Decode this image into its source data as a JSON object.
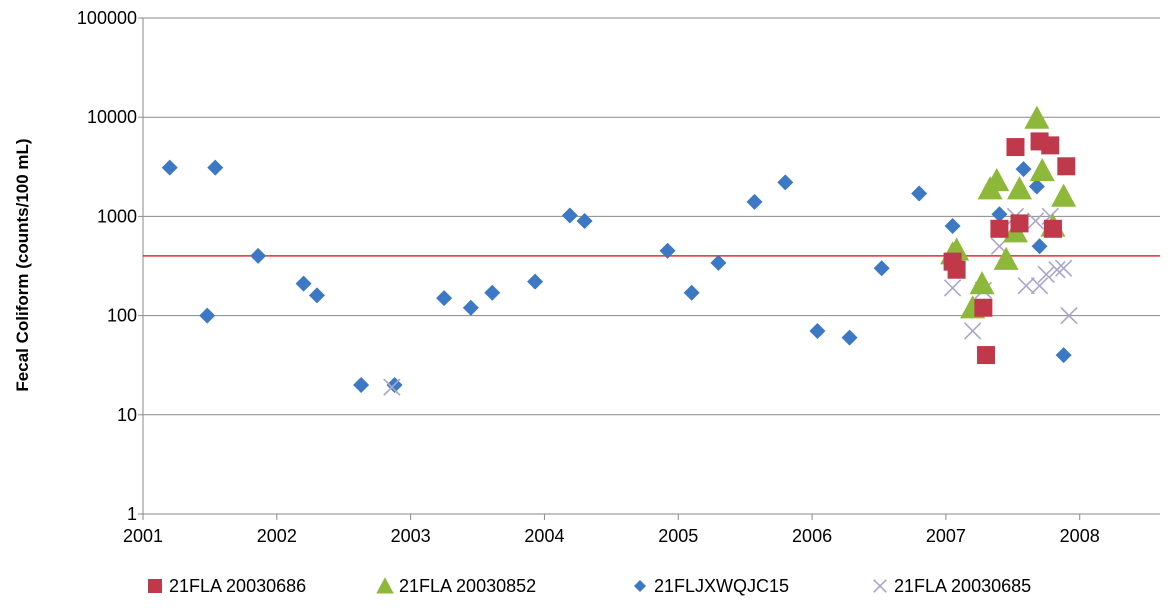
{
  "chart_data": {
    "type": "scatter",
    "title": "",
    "xlabel": "",
    "ylabel": "Fecal Coliform (counts/100 mL)",
    "yscale": "log",
    "ylim": [
      1,
      100000
    ],
    "xlim": [
      2001.0,
      2008.6
    ],
    "x_ticks": [
      2001,
      2002,
      2003,
      2004,
      2005,
      2006,
      2007,
      2008
    ],
    "y_ticks": [
      1,
      10,
      100,
      1000,
      10000,
      100000
    ],
    "y_tick_labels": [
      "1",
      "10",
      "100",
      "1000",
      "10000",
      "100000"
    ],
    "x_tick_labels": [
      "2001",
      "2002",
      "2003",
      "2004",
      "2005",
      "2006",
      "2007",
      "2008"
    ],
    "grid": "horizontal",
    "legend_position": "bottom",
    "reference_line": {
      "y": 400,
      "color": "#e03030"
    },
    "series": [
      {
        "name": "21FLA   20030686",
        "marker": "square",
        "color": "#c0394b",
        "points": [
          [
            2007.05,
            350
          ],
          [
            2007.08,
            290
          ],
          [
            2007.28,
            120
          ],
          [
            2007.3,
            40
          ],
          [
            2007.4,
            750
          ],
          [
            2007.52,
            5000
          ],
          [
            2007.55,
            850
          ],
          [
            2007.7,
            5700
          ],
          [
            2007.78,
            5200
          ],
          [
            2007.8,
            750
          ],
          [
            2007.9,
            3200
          ]
        ]
      },
      {
        "name": "21FLA   20030852",
        "marker": "triangle",
        "color": "#8db83a",
        "points": [
          [
            2007.05,
            420
          ],
          [
            2007.08,
            460
          ],
          [
            2007.2,
            120
          ],
          [
            2007.27,
            210
          ],
          [
            2007.33,
            1900
          ],
          [
            2007.38,
            2300
          ],
          [
            2007.45,
            370
          ],
          [
            2007.52,
            700
          ],
          [
            2007.55,
            1900
          ],
          [
            2007.68,
            9800
          ],
          [
            2007.72,
            2900
          ],
          [
            2007.8,
            800
          ],
          [
            2007.88,
            1600
          ]
        ]
      },
      {
        "name": "21FLJXWQJC15",
        "marker": "diamond",
        "color": "#3d78c5",
        "points": [
          [
            2001.2,
            3100
          ],
          [
            2001.48,
            100
          ],
          [
            2001.54,
            3100
          ],
          [
            2001.86,
            400
          ],
          [
            2002.2,
            210
          ],
          [
            2002.3,
            160
          ],
          [
            2002.63,
            20
          ],
          [
            2002.88,
            20
          ],
          [
            2003.25,
            150
          ],
          [
            2003.45,
            120
          ],
          [
            2003.61,
            170
          ],
          [
            2003.93,
            220
          ],
          [
            2004.19,
            1020
          ],
          [
            2004.3,
            900
          ],
          [
            2004.92,
            450
          ],
          [
            2005.1,
            170
          ],
          [
            2005.3,
            340
          ],
          [
            2005.57,
            1400
          ],
          [
            2005.8,
            2200
          ],
          [
            2006.04,
            70
          ],
          [
            2006.28,
            60
          ],
          [
            2006.52,
            300
          ],
          [
            2006.8,
            1700
          ],
          [
            2007.05,
            800
          ],
          [
            2007.4,
            1050
          ],
          [
            2007.58,
            3000
          ],
          [
            2007.68,
            2000
          ],
          [
            2007.7,
            500
          ],
          [
            2007.88,
            40
          ]
        ]
      },
      {
        "name": "21FLA   20030685",
        "marker": "x",
        "color": "#a9a6cc",
        "points": [
          [
            2002.86,
            19
          ],
          [
            2007.05,
            190
          ],
          [
            2007.2,
            70
          ],
          [
            2007.28,
            180
          ],
          [
            2007.4,
            500
          ],
          [
            2007.52,
            1000
          ],
          [
            2007.6,
            200
          ],
          [
            2007.67,
            900
          ],
          [
            2007.7,
            200
          ],
          [
            2007.75,
            260
          ],
          [
            2007.78,
            1000
          ],
          [
            2007.83,
            290
          ],
          [
            2007.88,
            300
          ],
          [
            2007.92,
            100
          ]
        ]
      }
    ]
  }
}
